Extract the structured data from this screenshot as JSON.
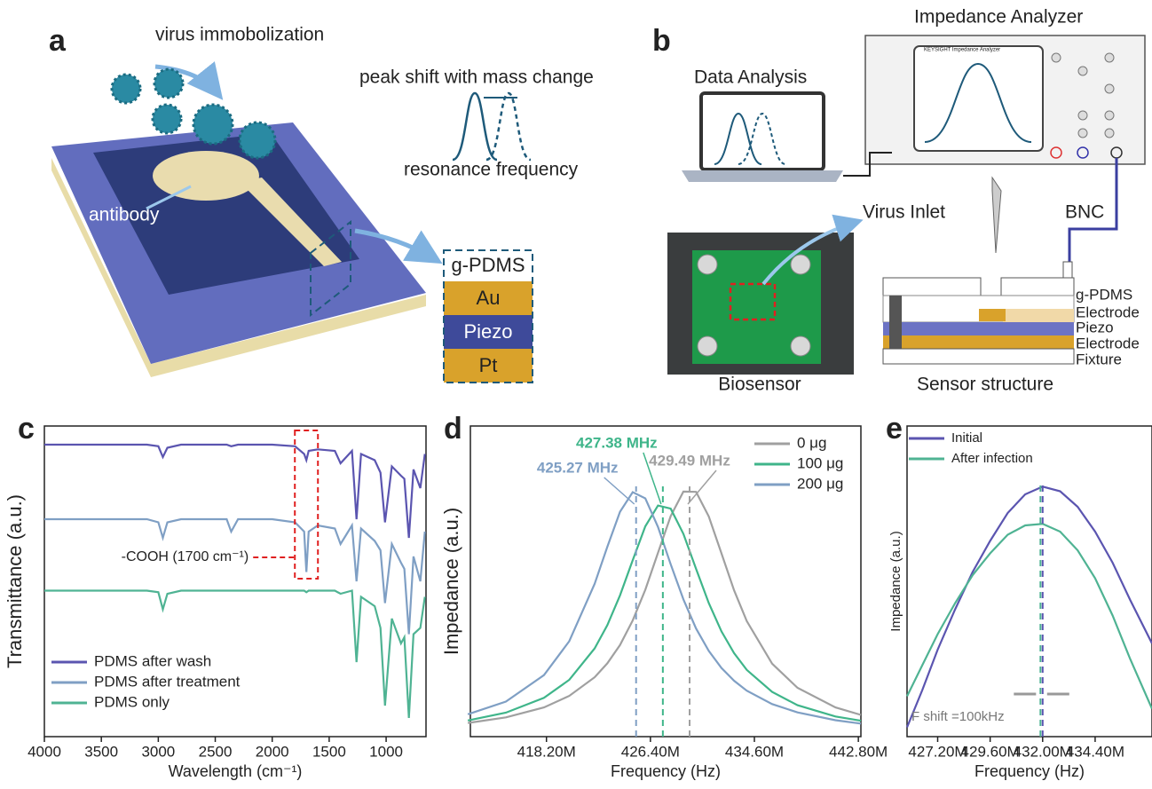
{
  "panel_a": {
    "label": "a",
    "virus_text": "virus immobolization",
    "shift_title": "peak shift with mass change",
    "shift_axis": "resonance frequency",
    "antibody": "antibody",
    "layers": [
      "g-PDMS",
      "Au",
      "Piezo",
      "Pt"
    ]
  },
  "panel_b": {
    "label": "b",
    "analyzer": "Impedance Analyzer",
    "screen_title": "Impedance Analyzer",
    "brand": "KEYSIGHT",
    "data_analysis": "Data Analysis",
    "virus_inlet": "Virus Inlet",
    "bnc": "BNC",
    "biosensor": "Biosensor",
    "structure": "Sensor structure",
    "layers": [
      "g-PDMS",
      "Electrode",
      "Piezo",
      "Electrode",
      "Fixture"
    ]
  },
  "chart_data": [
    {
      "type": "line",
      "panel_label": "c",
      "x_label": "Wavelength (cm⁻¹)",
      "y_label": "Transmittance (a.u.)",
      "x": [
        4000,
        3500,
        3100,
        3000,
        2960,
        2920,
        2800,
        2400,
        2360,
        2300,
        2000,
        1800,
        1720,
        1700,
        1680,
        1600,
        1450,
        1400,
        1300,
        1260,
        1220,
        1100,
        1050,
        1010,
        950,
        870,
        840,
        800,
        760,
        700,
        660
      ],
      "xlim": [
        4000,
        650
      ],
      "xticks": [
        4000,
        3500,
        3000,
        2500,
        2000,
        1500,
        1000
      ],
      "ylim": [
        0,
        10
      ],
      "legend": "lower left",
      "annotation": {
        "text": "-COOH (1700 cm⁻¹)",
        "x": 1700
      },
      "series": [
        {
          "name": "PDMS after wash",
          "color": "#5b55b0",
          "values": [
            9.4,
            9.4,
            9.4,
            9.35,
            9.0,
            9.3,
            9.4,
            9.4,
            9.35,
            9.4,
            9.4,
            9.35,
            9.1,
            8.9,
            9.2,
            9.25,
            9.2,
            8.8,
            9.2,
            7.0,
            9.1,
            8.9,
            8.5,
            6.9,
            8.7,
            8.4,
            8.3,
            6.4,
            8.6,
            8.0,
            9.1
          ]
        },
        {
          "name": "PDMS after treatment",
          "color": "#7f9fc4",
          "values": [
            7.0,
            7.0,
            7.0,
            6.9,
            6.4,
            6.9,
            7.0,
            7.0,
            6.6,
            7.0,
            7.0,
            6.9,
            6.6,
            5.3,
            6.6,
            6.8,
            6.7,
            6.2,
            6.8,
            5.0,
            6.7,
            6.3,
            6.0,
            4.3,
            6.2,
            5.6,
            5.4,
            3.3,
            5.8,
            5.0,
            6.6
          ]
        },
        {
          "name": "PDMS only",
          "color": "#4fb393",
          "values": [
            4.7,
            4.7,
            4.7,
            4.65,
            4.1,
            4.6,
            4.7,
            4.7,
            4.7,
            4.7,
            4.7,
            4.7,
            4.7,
            4.65,
            4.7,
            4.7,
            4.7,
            4.6,
            4.7,
            2.4,
            4.5,
            4.2,
            3.5,
            1.0,
            3.8,
            3.0,
            3.2,
            0.6,
            3.3,
            3.5,
            4.5
          ]
        }
      ]
    },
    {
      "type": "line",
      "panel_label": "d",
      "x_label": "Frequency (Hz)",
      "y_label": "Impedance (a.u.)",
      "x": [
        412,
        415,
        418,
        420,
        422,
        423,
        424,
        425,
        426,
        427,
        428,
        429,
        430,
        431,
        432,
        433,
        434,
        436,
        438,
        441,
        443
      ],
      "xlim": [
        412.2,
        443
      ],
      "xticks": [
        {
          "value": 418.2,
          "label": "418.20M"
        },
        {
          "value": 426.4,
          "label": "426.40M"
        },
        {
          "value": 434.6,
          "label": "434.60M"
        },
        {
          "value": 442.8,
          "label": "442.80M"
        }
      ],
      "ylim": [
        0,
        10
      ],
      "legend": "upper right",
      "markers": [
        {
          "x": 425.27,
          "label": "425.27 MHz",
          "color": "#7f9fc4"
        },
        {
          "x": 427.38,
          "label": "427.38 MHz",
          "color": "#3fb58a"
        },
        {
          "x": 429.49,
          "label": "429.49 MHz",
          "color": "#a0a0a0"
        }
      ],
      "series": [
        {
          "name": "0 μg",
          "color": "#a0a0a0",
          "values": [
            0.44,
            0.62,
            0.94,
            1.31,
            1.91,
            2.36,
            2.95,
            3.74,
            4.73,
            5.92,
            7.1,
            7.89,
            7.88,
            7.09,
            5.9,
            4.71,
            3.72,
            2.35,
            1.57,
            0.94,
            0.7
          ]
        },
        {
          "name": "100 μg",
          "color": "#3fb58a",
          "values": [
            0.52,
            0.77,
            1.25,
            1.83,
            2.84,
            3.59,
            4.55,
            5.68,
            6.77,
            7.44,
            7.34,
            6.53,
            5.4,
            4.3,
            3.39,
            2.69,
            2.15,
            1.44,
            1.01,
            0.65,
            0.51
          ]
        },
        {
          "name": "200 μg",
          "color": "#7f9fc4",
          "values": [
            0.72,
            1.13,
            1.98,
            3.07,
            4.92,
            6.11,
            7.24,
            7.87,
            7.67,
            6.75,
            5.55,
            4.42,
            3.48,
            2.76,
            2.21,
            1.8,
            1.48,
            1.05,
            0.78,
            0.53,
            0.42
          ]
        }
      ]
    },
    {
      "type": "line",
      "panel_label": "e",
      "x_label": "Frequency (Hz)",
      "y_label": "Impedance (a.u.)",
      "x": [
        425.8,
        426.5,
        427.2,
        428,
        428.8,
        429.6,
        430.4,
        431.2,
        432,
        432.8,
        433.6,
        434.4,
        435.2,
        436,
        437
      ],
      "xlim": [
        425.8,
        437
      ],
      "xticks": [
        {
          "value": 427.2,
          "label": "427.20M"
        },
        {
          "value": 429.6,
          "label": "429.60M"
        },
        {
          "value": 432,
          "label": "432.00M"
        },
        {
          "value": 434.4,
          "label": "434.40M"
        }
      ],
      "ylim": [
        0,
        10
      ],
      "legend": "upper left",
      "markers": [
        {
          "x": 431.9,
          "color": "#4fb393"
        },
        {
          "x": 432,
          "color": "#5b55b0"
        }
      ],
      "annotation": {
        "text": "F shift =100kHz"
      },
      "series": [
        {
          "name": "Initial",
          "color": "#5b55b0",
          "values": [
            0.3,
            1.5,
            2.8,
            4.1,
            5.3,
            6.3,
            7.2,
            7.8,
            8.05,
            7.9,
            7.4,
            6.6,
            5.6,
            4.4,
            3.0
          ]
        },
        {
          "name": "After infection",
          "color": "#4fb393",
          "values": [
            1.3,
            2.3,
            3.3,
            4.3,
            5.2,
            5.9,
            6.5,
            6.8,
            6.85,
            6.6,
            6.0,
            5.1,
            3.9,
            2.5,
            0.9
          ]
        }
      ]
    }
  ]
}
